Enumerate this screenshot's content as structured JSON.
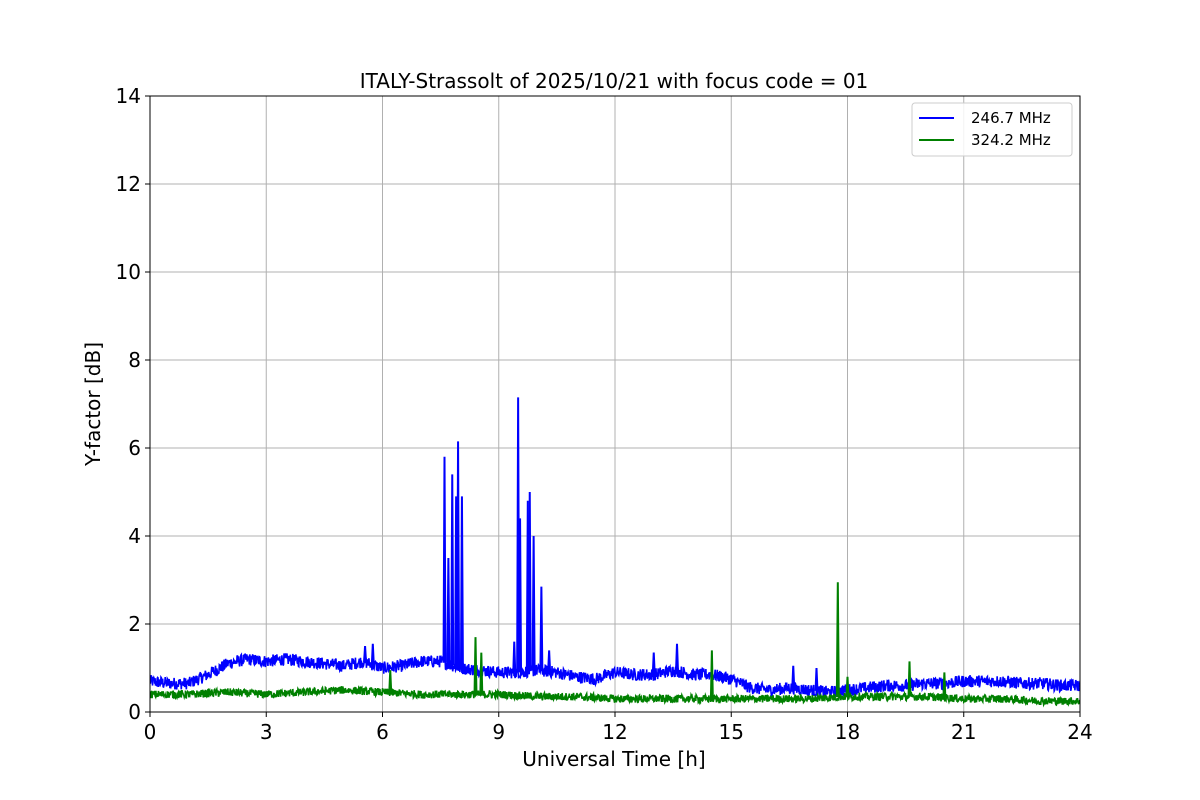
{
  "chart_data": {
    "type": "line",
    "title": "ITALY-Strassolt of 2025/10/21 with focus code = 01",
    "xlabel": "Universal Time [h]",
    "ylabel": "Y-factor [dB]",
    "xlim": [
      0,
      24
    ],
    "ylim": [
      0,
      14
    ],
    "xticks": [
      0,
      3,
      6,
      9,
      12,
      15,
      18,
      21,
      24
    ],
    "yticks": [
      0,
      2,
      4,
      6,
      8,
      10,
      12,
      14
    ],
    "grid": true,
    "legend_position": "top-right",
    "series": [
      {
        "name": "246.7 MHz",
        "color": "#0000ff",
        "baseline": {
          "x": [
            0,
            0.5,
            1.0,
            1.5,
            2.0,
            2.5,
            3.0,
            3.5,
            4.0,
            4.5,
            5.0,
            5.5,
            6.0,
            6.5,
            7.0,
            7.5,
            8.0,
            8.5,
            9.0,
            9.5,
            10.0,
            10.5,
            11.0,
            11.5,
            12.0,
            12.5,
            13.0,
            13.5,
            14.0,
            14.5,
            15.0,
            15.5,
            16.0,
            16.5,
            17.0,
            17.5,
            18.0,
            18.5,
            19.0,
            19.5,
            20.0,
            20.5,
            21.0,
            21.5,
            22.0,
            22.5,
            23.0,
            23.5,
            24.0
          ],
          "y": [
            0.7,
            0.65,
            0.65,
            0.85,
            1.1,
            1.2,
            1.15,
            1.2,
            1.15,
            1.1,
            1.05,
            1.15,
            1.0,
            1.05,
            1.15,
            1.15,
            1.0,
            0.95,
            0.9,
            0.9,
            0.95,
            0.9,
            0.8,
            0.75,
            0.9,
            0.85,
            0.85,
            0.95,
            0.85,
            0.85,
            0.75,
            0.55,
            0.5,
            0.55,
            0.5,
            0.45,
            0.5,
            0.55,
            0.6,
            0.6,
            0.65,
            0.65,
            0.7,
            0.7,
            0.7,
            0.65,
            0.65,
            0.6,
            0.6
          ]
        },
        "spikes": [
          {
            "x": 5.55,
            "y": 1.5
          },
          {
            "x": 5.75,
            "y": 1.55
          },
          {
            "x": 7.6,
            "y": 5.8
          },
          {
            "x": 7.7,
            "y": 3.5
          },
          {
            "x": 7.8,
            "y": 5.4
          },
          {
            "x": 7.9,
            "y": 4.9
          },
          {
            "x": 7.95,
            "y": 6.15
          },
          {
            "x": 8.05,
            "y": 4.9
          },
          {
            "x": 9.4,
            "y": 1.6
          },
          {
            "x": 9.5,
            "y": 7.15
          },
          {
            "x": 9.55,
            "y": 4.4
          },
          {
            "x": 9.75,
            "y": 4.8
          },
          {
            "x": 9.8,
            "y": 5.0
          },
          {
            "x": 9.9,
            "y": 4.0
          },
          {
            "x": 10.1,
            "y": 2.85
          },
          {
            "x": 10.3,
            "y": 1.4
          },
          {
            "x": 13.0,
            "y": 1.35
          },
          {
            "x": 13.6,
            "y": 1.55
          },
          {
            "x": 16.6,
            "y": 1.05
          },
          {
            "x": 17.2,
            "y": 1.0
          }
        ]
      },
      {
        "name": "324.2 MHz",
        "color": "#008000",
        "baseline": {
          "x": [
            0,
            1,
            2,
            3,
            4,
            5,
            6,
            7,
            8,
            9,
            10,
            11,
            12,
            13,
            14,
            15,
            16,
            17,
            18,
            19,
            20,
            21,
            22,
            23,
            24
          ],
          "y": [
            0.4,
            0.4,
            0.45,
            0.4,
            0.45,
            0.5,
            0.45,
            0.4,
            0.4,
            0.4,
            0.35,
            0.35,
            0.3,
            0.3,
            0.3,
            0.3,
            0.3,
            0.3,
            0.35,
            0.35,
            0.35,
            0.3,
            0.3,
            0.25,
            0.25
          ]
        },
        "spikes": [
          {
            "x": 6.2,
            "y": 0.95
          },
          {
            "x": 8.4,
            "y": 1.7
          },
          {
            "x": 8.55,
            "y": 1.35
          },
          {
            "x": 14.5,
            "y": 1.4
          },
          {
            "x": 17.75,
            "y": 2.95
          },
          {
            "x": 18.0,
            "y": 0.8
          },
          {
            "x": 19.6,
            "y": 1.15
          },
          {
            "x": 20.5,
            "y": 0.9
          }
        ]
      }
    ]
  }
}
